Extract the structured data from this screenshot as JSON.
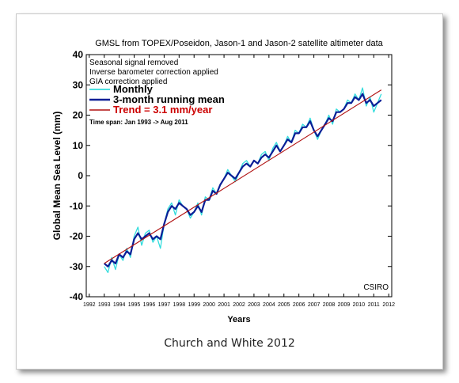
{
  "caption": "Church and White 2012",
  "chart_data": {
    "type": "line",
    "title": "GMSL from TOPEX/Poseidon, Jason-1 and Jason-2 satellite altimeter data",
    "xlabel": "Years",
    "ylabel": "Global Mean Sea Level (mm)",
    "xlim": [
      1991.8,
      2012.2
    ],
    "ylim": [
      -40,
      40
    ],
    "x_ticks": [
      1992,
      1993,
      1994,
      1995,
      1996,
      1997,
      1998,
      1999,
      2000,
      2001,
      2002,
      2003,
      2004,
      2005,
      2006,
      2007,
      2008,
      2009,
      2010,
      2011,
      2012
    ],
    "y_ticks": [
      -40,
      -30,
      -20,
      -10,
      0,
      10,
      20,
      30,
      40
    ],
    "notes": [
      "Seasonal signal removed",
      "Inverse barometer correction applied",
      "GIA correction applied"
    ],
    "time_span": "Time span: Jan 1993 -> Aug 2011",
    "source_label": "CSIRO",
    "colors": {
      "monthly": "#33dddd",
      "running_mean": "#0a1e96",
      "trend": "#b01010",
      "trend_label": "#cc0000"
    },
    "series": [
      {
        "name": "Monthly",
        "x": [
          1993.0,
          1993.25,
          1993.5,
          1993.75,
          1994.0,
          1994.25,
          1994.5,
          1994.75,
          1995.0,
          1995.25,
          1995.5,
          1995.75,
          1996.0,
          1996.25,
          1996.5,
          1996.75,
          1997.0,
          1997.25,
          1997.5,
          1997.75,
          1998.0,
          1998.25,
          1998.5,
          1998.75,
          1999.0,
          1999.25,
          1999.5,
          1999.75,
          2000.0,
          2000.25,
          2000.5,
          2000.75,
          2001.0,
          2001.25,
          2001.5,
          2001.75,
          2002.0,
          2002.25,
          2002.5,
          2002.75,
          2003.0,
          2003.25,
          2003.5,
          2003.75,
          2004.0,
          2004.25,
          2004.5,
          2004.75,
          2005.0,
          2005.25,
          2005.5,
          2005.75,
          2006.0,
          2006.25,
          2006.5,
          2006.75,
          2007.0,
          2007.25,
          2007.5,
          2007.75,
          2008.0,
          2008.25,
          2008.5,
          2008.75,
          2009.0,
          2009.25,
          2009.5,
          2009.75,
          2010.0,
          2010.25,
          2010.5,
          2010.75,
          2011.0,
          2011.25,
          2011.5
        ],
        "y": [
          -30,
          -32,
          -27,
          -31,
          -26,
          -28,
          -24,
          -27,
          -20,
          -17,
          -23,
          -19,
          -18,
          -22,
          -20,
          -24,
          -16,
          -11,
          -9,
          -13,
          -8,
          -10,
          -11,
          -14,
          -12,
          -9,
          -13,
          -7,
          -8,
          -4,
          -6,
          -3,
          -1,
          2,
          0,
          -2,
          1,
          4,
          5,
          3,
          5,
          4,
          7,
          8,
          5,
          9,
          11,
          8,
          10,
          13,
          11,
          15,
          14,
          17,
          16,
          19,
          15,
          12,
          15,
          17,
          20,
          17,
          22,
          21,
          22,
          25,
          24,
          27,
          25,
          29,
          23,
          26,
          21,
          24,
          27
        ]
      },
      {
        "name": "3-month running mean",
        "x": [
          1993.0,
          1993.25,
          1993.5,
          1993.75,
          1994.0,
          1994.25,
          1994.5,
          1994.75,
          1995.0,
          1995.25,
          1995.5,
          1995.75,
          1996.0,
          1996.25,
          1996.5,
          1996.75,
          1997.0,
          1997.25,
          1997.5,
          1997.75,
          1998.0,
          1998.25,
          1998.5,
          1998.75,
          1999.0,
          1999.25,
          1999.5,
          1999.75,
          2000.0,
          2000.25,
          2000.5,
          2000.75,
          2001.0,
          2001.25,
          2001.5,
          2001.75,
          2002.0,
          2002.25,
          2002.5,
          2002.75,
          2003.0,
          2003.25,
          2003.5,
          2003.75,
          2004.0,
          2004.25,
          2004.5,
          2004.75,
          2005.0,
          2005.25,
          2005.5,
          2005.75,
          2006.0,
          2006.25,
          2006.5,
          2006.75,
          2007.0,
          2007.25,
          2007.5,
          2007.75,
          2008.0,
          2008.25,
          2008.5,
          2008.75,
          2009.0,
          2009.25,
          2009.5,
          2009.75,
          2010.0,
          2010.25,
          2010.5,
          2010.75,
          2011.0,
          2011.25,
          2011.5
        ],
        "y": [
          -29,
          -30,
          -28,
          -29,
          -26,
          -27,
          -25,
          -26,
          -21,
          -19,
          -21,
          -20,
          -19,
          -21,
          -20,
          -21,
          -16,
          -12,
          -10,
          -11,
          -9,
          -10,
          -11,
          -13,
          -12,
          -10,
          -12,
          -8,
          -8,
          -5,
          -6,
          -3,
          -1,
          1,
          0,
          -1,
          1,
          3,
          4,
          3,
          5,
          4,
          6,
          7,
          6,
          8,
          10,
          8,
          10,
          12,
          11,
          14,
          14,
          16,
          16,
          18,
          15,
          13,
          15,
          17,
          19,
          18,
          21,
          21,
          22,
          24,
          24,
          26,
          25,
          27,
          24,
          25,
          23,
          24,
          25
        ]
      },
      {
        "name": "Trend = 3.1 mm/year",
        "x": [
          1993.0,
          2011.5
        ],
        "y": [
          -29.0,
          28.35
        ]
      }
    ]
  }
}
